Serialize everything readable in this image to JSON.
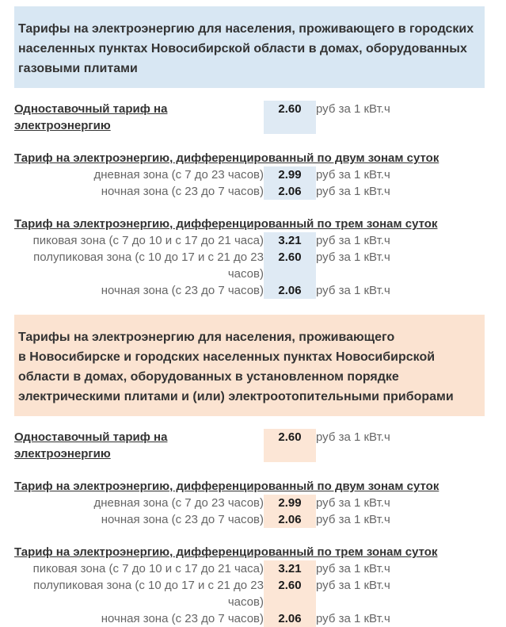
{
  "sections": [
    {
      "name": "gas-stoves",
      "colors": {
        "header_bg": "#d8e7f3",
        "value_bg": "#dfeaf4"
      },
      "title": "Тарифы на электроэнергию для населения, проживающего в городских\nнаселенных пунктах Новосибирской области в домах, оборудованных\nгазовыми плитами",
      "groups": [
        {
          "heading": "Одноставочный тариф на электроэнергию",
          "rows": [
            {
              "label": "",
              "value": "2.60",
              "unit": "руб за 1 кВт.ч"
            }
          ]
        },
        {
          "heading": "Тариф на электроэнергию, дифференцированный по двум зонам суток",
          "rows": [
            {
              "label": "дневная зона (с 7 до 23 часов)",
              "value": "2.99",
              "unit": "руб за 1 кВт.ч"
            },
            {
              "label": "ночная зона (с 23 до 7 часов)",
              "value": "2.06",
              "unit": "руб за 1 кВт.ч"
            }
          ]
        },
        {
          "heading": "Тариф на электроэнергию, дифференцированный по трем зонам суток",
          "rows": [
            {
              "label": "пиковая зона (с 7 до 10 и с 17 до 21 часа)",
              "value": "3.21",
              "unit": "руб за 1 кВт.ч"
            },
            {
              "label": "полупиковая зона (с 10 до 17 и с 21 до 23\nчасов)",
              "value": "2.60",
              "unit": "руб за 1 кВт.ч"
            },
            {
              "label": "ночная зона (с 23 до 7 часов)",
              "value": "2.06",
              "unit": "руб за 1 кВт.ч"
            }
          ]
        }
      ]
    },
    {
      "name": "electric-stoves",
      "colors": {
        "header_bg": "#fbe3d1",
        "value_bg": "#fce6d6"
      },
      "title": "Тарифы на электроэнергию для населения, проживающего\nв Новосибирске и городских населенных пунктах Новосибирской\nобласти в домах, оборудованных в установленном порядке\nэлектрическими плитами и (или) электроотопительными приборами",
      "groups": [
        {
          "heading": "Одноставочный тариф на электроэнергию",
          "rows": [
            {
              "label": "",
              "value": "2.60",
              "unit": "руб за 1 кВт.ч"
            }
          ]
        },
        {
          "heading": "Тариф на электроэнергию, дифференцированный по двум зонам суток",
          "rows": [
            {
              "label": "дневная зона (с 7 до 23 часов)",
              "value": "2.99",
              "unit": "руб за 1 кВт.ч"
            },
            {
              "label": "ночная зона (с 23 до 7 часов)",
              "value": "2.06",
              "unit": "руб за 1 кВт.ч"
            }
          ]
        },
        {
          "heading": "Тариф на электроэнергию, дифференцированный по трем зонам суток",
          "rows": [
            {
              "label": "пиковая зона (с 7 до 10 и с 17 до 21 часа)",
              "value": "3.21",
              "unit": "руб за 1 кВт.ч"
            },
            {
              "label": "полупиковая зона (с 10 до 17 и с 21 до 23\nчасов)",
              "value": "2.60",
              "unit": "руб за 1 кВт.ч"
            },
            {
              "label": "ночная зона (с 23 до 7 часов)",
              "value": "2.06",
              "unit": "руб за 1 кВт.ч"
            }
          ]
        }
      ]
    }
  ]
}
